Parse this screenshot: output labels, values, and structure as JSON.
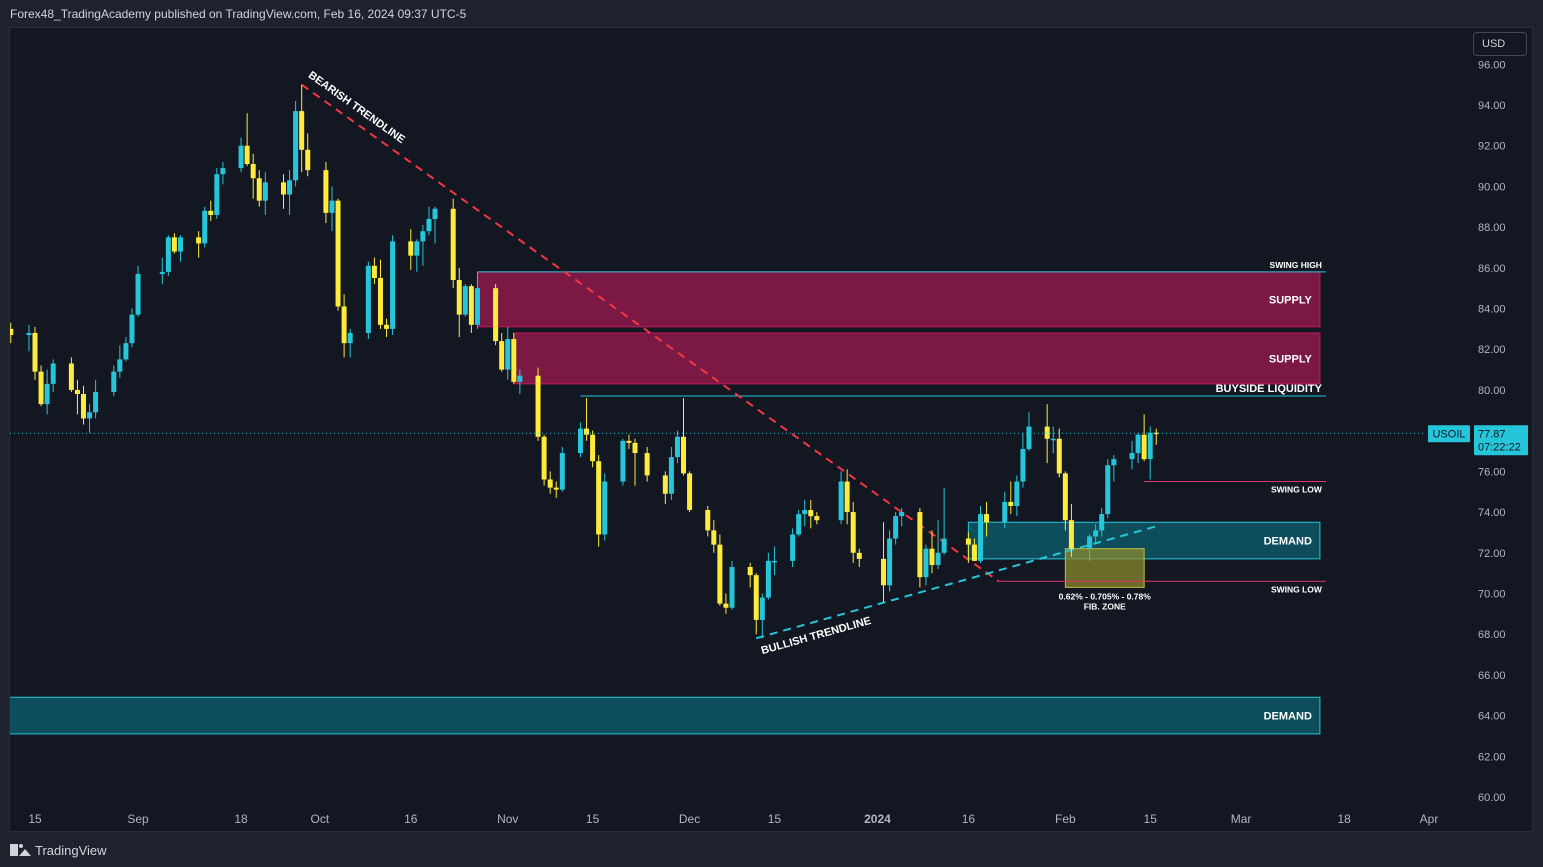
{
  "header": {
    "published": "Forex48_TradingAcademy published on TradingView.com, Feb 16, 2024 09:37 UTC-5"
  },
  "footer": {
    "brand": "TradingView"
  },
  "toolbar": {
    "currency": "USD"
  },
  "colors": {
    "background": "#131722",
    "bullish": "#26c6da",
    "bearish": "#ffeb3b",
    "supply": "#8e1a4a",
    "demand": "#0e5866",
    "fib_zone": "#8a8a2e",
    "bearish_trendline": "#f23645",
    "bullish_trendline": "#26c6da",
    "price_line": "#26c6da"
  },
  "chart_data": {
    "type": "candlestick",
    "symbol": "USOIL",
    "last_price": "77.87",
    "countdown": "07:22:22",
    "price_axis": {
      "min": 59,
      "max": 97,
      "ticks": [
        "96.00",
        "94.00",
        "92.00",
        "90.00",
        "88.00",
        "86.00",
        "84.00",
        "82.00",
        "80.00",
        "78.00",
        "76.00",
        "74.00",
        "72.00",
        "70.00",
        "68.00",
        "66.00",
        "64.00",
        "62.00",
        "60.00"
      ]
    },
    "time_axis": {
      "labels": [
        {
          "label": "15",
          "date": "2023-08-15"
        },
        {
          "label": "Sep",
          "date": "2023-09-01"
        },
        {
          "label": "18",
          "date": "2023-09-18"
        },
        {
          "label": "Oct",
          "date": "2023-10-01"
        },
        {
          "label": "16",
          "date": "2023-10-16"
        },
        {
          "label": "Nov",
          "date": "2023-11-01"
        },
        {
          "label": "15",
          "date": "2023-11-15"
        },
        {
          "label": "Dec",
          "date": "2023-12-01"
        },
        {
          "label": "15",
          "date": "2023-12-15"
        },
        {
          "label": "2024",
          "date": "2024-01-01"
        },
        {
          "label": "16",
          "date": "2024-01-16"
        },
        {
          "label": "Feb",
          "date": "2024-02-01"
        },
        {
          "label": "15",
          "date": "2024-02-15"
        },
        {
          "label": "Mar",
          "date": "2024-03-01"
        },
        {
          "label": "18",
          "date": "2024-03-18"
        },
        {
          "label": "Apr",
          "date": "2024-04-01"
        }
      ]
    },
    "candles": [
      [
        "2023-08-10",
        83.5,
        84.3,
        82.6,
        83.0
      ],
      [
        "2023-08-11",
        83.0,
        83.3,
        82.3,
        82.7
      ],
      [
        "2023-08-14",
        82.7,
        83.2,
        81.9,
        82.8
      ],
      [
        "2023-08-15",
        82.8,
        83.1,
        80.5,
        80.9
      ],
      [
        "2023-08-16",
        80.9,
        81.2,
        79.2,
        79.3
      ],
      [
        "2023-08-17",
        79.3,
        81.0,
        78.8,
        80.3
      ],
      [
        "2023-08-18",
        80.3,
        81.5,
        79.9,
        81.3
      ],
      [
        "2023-08-21",
        81.3,
        81.6,
        79.9,
        80.0
      ],
      [
        "2023-08-22",
        80.0,
        80.5,
        78.8,
        79.8
      ],
      [
        "2023-08-23",
        79.8,
        80.2,
        78.3,
        78.6
      ],
      [
        "2023-08-24",
        78.6,
        79.3,
        77.9,
        78.9
      ],
      [
        "2023-08-25",
        78.9,
        80.5,
        78.6,
        79.9
      ],
      [
        "2023-08-28",
        79.9,
        81.2,
        79.7,
        80.9
      ],
      [
        "2023-08-29",
        80.9,
        82.2,
        80.6,
        81.5
      ],
      [
        "2023-08-30",
        81.5,
        82.6,
        81.4,
        82.3
      ],
      [
        "2023-08-31",
        82.3,
        84.0,
        82.1,
        83.7
      ],
      [
        "2023-09-01",
        83.7,
        86.1,
        83.6,
        85.7
      ],
      [
        "2023-09-05",
        85.7,
        86.5,
        85.2,
        85.8
      ],
      [
        "2023-09-06",
        85.8,
        87.6,
        85.6,
        87.5
      ],
      [
        "2023-09-07",
        87.5,
        87.7,
        86.7,
        86.8
      ],
      [
        "2023-09-08",
        86.8,
        87.6,
        86.3,
        87.5
      ],
      [
        "2023-09-11",
        87.5,
        87.8,
        86.5,
        87.2
      ],
      [
        "2023-09-12",
        87.2,
        89.0,
        87.0,
        88.8
      ],
      [
        "2023-09-13",
        88.8,
        89.3,
        88.3,
        88.6
      ],
      [
        "2023-09-14",
        88.6,
        90.9,
        88.4,
        90.6
      ],
      [
        "2023-09-15",
        90.6,
        91.2,
        90.1,
        90.9
      ],
      [
        "2023-09-18",
        90.9,
        92.4,
        90.7,
        92.0
      ],
      [
        "2023-09-19",
        92.0,
        93.6,
        91.0,
        91.1
      ],
      [
        "2023-09-20",
        91.1,
        91.6,
        89.4,
        90.4
      ],
      [
        "2023-09-21",
        90.4,
        90.8,
        89.0,
        89.3
      ],
      [
        "2023-09-22",
        89.3,
        90.7,
        88.6,
        90.2
      ],
      [
        "2023-09-25",
        90.2,
        90.6,
        88.9,
        89.6
      ],
      [
        "2023-09-26",
        89.6,
        90.8,
        88.6,
        90.3
      ],
      [
        "2023-09-27",
        90.3,
        94.2,
        90.0,
        93.7
      ],
      [
        "2023-09-28",
        93.7,
        95.0,
        90.7,
        91.8
      ],
      [
        "2023-09-29",
        91.8,
        92.6,
        90.5,
        90.8
      ],
      [
        "2023-10-02",
        90.8,
        91.2,
        88.2,
        88.7
      ],
      [
        "2023-10-03",
        88.7,
        90.0,
        87.8,
        89.3
      ],
      [
        "2023-10-04",
        89.3,
        89.4,
        83.9,
        84.1
      ],
      [
        "2023-10-05",
        84.1,
        84.7,
        81.6,
        82.3
      ],
      [
        "2023-10-06",
        82.3,
        83.0,
        81.6,
        82.8
      ],
      [
        "2023-10-09",
        82.8,
        86.3,
        82.5,
        86.1
      ],
      [
        "2023-10-10",
        86.1,
        86.5,
        85.2,
        85.5
      ],
      [
        "2023-10-11",
        85.5,
        86.4,
        83.0,
        83.2
      ],
      [
        "2023-10-12",
        83.2,
        83.5,
        82.6,
        83.0
      ],
      [
        "2023-10-13",
        83.0,
        87.6,
        82.7,
        87.3
      ],
      [
        "2023-10-16",
        87.3,
        87.9,
        85.9,
        86.6
      ],
      [
        "2023-10-17",
        86.6,
        87.4,
        85.8,
        87.3
      ],
      [
        "2023-10-18",
        87.3,
        88.1,
        86.1,
        87.8
      ],
      [
        "2023-10-19",
        87.8,
        89.0,
        87.6,
        88.4
      ],
      [
        "2023-10-20",
        88.4,
        89.0,
        87.2,
        88.9
      ],
      [
        "2023-10-23",
        88.9,
        89.4,
        85.0,
        85.4
      ],
      [
        "2023-10-24",
        85.4,
        86.0,
        82.6,
        83.7
      ],
      [
        "2023-10-25",
        83.7,
        85.2,
        83.6,
        85.1
      ],
      [
        "2023-10-26",
        85.1,
        85.2,
        82.8,
        83.2
      ],
      [
        "2023-10-27",
        83.2,
        85.8,
        83.0,
        85.0
      ],
      [
        "2023-10-30",
        85.0,
        85.2,
        82.2,
        82.4
      ],
      [
        "2023-10-31",
        82.4,
        82.8,
        80.9,
        81.0
      ],
      [
        "2023-11-01",
        81.0,
        83.1,
        80.5,
        82.5
      ],
      [
        "2023-11-02",
        82.5,
        82.8,
        80.3,
        80.4
      ],
      [
        "2023-11-03",
        80.4,
        81.0,
        79.8,
        80.7
      ],
      [
        "2023-11-06",
        80.7,
        81.1,
        77.5,
        77.7
      ],
      [
        "2023-11-07",
        77.7,
        77.8,
        75.3,
        75.6
      ],
      [
        "2023-11-08",
        75.6,
        76.0,
        74.9,
        75.2
      ],
      [
        "2023-11-09",
        75.2,
        75.5,
        74.7,
        75.1
      ],
      [
        "2023-11-10",
        75.1,
        77.2,
        75.0,
        76.9
      ],
      [
        "2023-11-13",
        76.9,
        78.4,
        76.7,
        78.1
      ],
      [
        "2023-11-14",
        78.1,
        79.6,
        77.5,
        77.8
      ],
      [
        "2023-11-15",
        77.8,
        78.0,
        76.2,
        76.5
      ],
      [
        "2023-11-16",
        76.5,
        76.8,
        72.3,
        72.9
      ],
      [
        "2023-11-17",
        72.9,
        75.9,
        72.6,
        75.5
      ],
      [
        "2023-11-20",
        75.5,
        77.6,
        75.3,
        77.5
      ],
      [
        "2023-11-21",
        77.5,
        77.8,
        77.1,
        77.4
      ],
      [
        "2023-11-22",
        77.4,
        77.6,
        75.3,
        76.9
      ],
      [
        "2023-11-24",
        76.9,
        77.2,
        75.5,
        75.8
      ],
      [
        "2023-11-27",
        75.8,
        76.0,
        74.4,
        74.9
      ],
      [
        "2023-11-28",
        74.9,
        77.2,
        74.6,
        76.7
      ],
      [
        "2023-11-29",
        76.7,
        78.0,
        76.4,
        77.7
      ],
      [
        "2023-11-30",
        77.7,
        79.6,
        75.8,
        75.9
      ],
      [
        "2023-12-01",
        75.9,
        76.0,
        74.0,
        74.1
      ],
      [
        "2023-12-04",
        74.1,
        74.3,
        72.8,
        73.1
      ],
      [
        "2023-12-05",
        73.1,
        73.6,
        72.0,
        72.4
      ],
      [
        "2023-12-06",
        72.4,
        72.9,
        69.4,
        69.5
      ],
      [
        "2023-12-07",
        69.5,
        70.0,
        69.0,
        69.3
      ],
      [
        "2023-12-08",
        69.3,
        71.6,
        69.2,
        71.3
      ],
      [
        "2023-12-11",
        71.3,
        71.5,
        70.3,
        70.9
      ],
      [
        "2023-12-12",
        70.9,
        71.0,
        68.0,
        68.7
      ],
      [
        "2023-12-13",
        68.7,
        70.0,
        67.8,
        69.8
      ],
      [
        "2023-12-14",
        69.8,
        72.0,
        69.7,
        71.6
      ],
      [
        "2023-12-15",
        71.6,
        72.3,
        70.9,
        71.6
      ],
      [
        "2023-12-18",
        71.6,
        73.2,
        71.3,
        72.9
      ],
      [
        "2023-12-19",
        72.9,
        74.1,
        72.8,
        73.9
      ],
      [
        "2023-12-20",
        73.9,
        74.6,
        73.3,
        74.1
      ],
      [
        "2023-12-21",
        74.1,
        74.6,
        73.2,
        73.8
      ],
      [
        "2023-12-22",
        73.8,
        74.0,
        73.4,
        73.6
      ],
      [
        "2023-12-26",
        73.6,
        76.0,
        73.4,
        75.5
      ],
      [
        "2023-12-27",
        75.5,
        76.1,
        73.4,
        74.0
      ],
      [
        "2023-12-28",
        74.0,
        74.5,
        71.5,
        72.0
      ],
      [
        "2023-12-29",
        72.0,
        72.2,
        71.3,
        71.7
      ],
      [
        "2024-01-02",
        71.7,
        73.5,
        69.6,
        70.4
      ],
      [
        "2024-01-03",
        70.4,
        73.1,
        70.1,
        72.7
      ],
      [
        "2024-01-04",
        72.7,
        74.0,
        72.4,
        73.8
      ],
      [
        "2024-01-05",
        73.8,
        74.2,
        73.3,
        74.0
      ],
      [
        "2024-01-08",
        74.0,
        74.2,
        70.3,
        70.8
      ],
      [
        "2024-01-09",
        70.8,
        72.4,
        70.4,
        72.2
      ],
      [
        "2024-01-10",
        72.2,
        73.1,
        71.0,
        71.4
      ],
      [
        "2024-01-11",
        71.4,
        73.6,
        71.2,
        72.0
      ],
      [
        "2024-01-12",
        72.0,
        75.2,
        71.9,
        72.7
      ],
      [
        "2024-01-16",
        72.7,
        73.0,
        71.5,
        72.4
      ],
      [
        "2024-01-17",
        72.4,
        72.7,
        71.6,
        71.6
      ],
      [
        "2024-01-18",
        71.6,
        74.3,
        71.5,
        73.9
      ],
      [
        "2024-01-19",
        73.9,
        74.5,
        72.8,
        73.5
      ],
      [
        "2024-01-22",
        73.5,
        75.0,
        73.2,
        74.5
      ],
      [
        "2024-01-23",
        74.5,
        75.5,
        73.9,
        74.3
      ],
      [
        "2024-01-24",
        74.3,
        75.8,
        73.8,
        75.5
      ],
      [
        "2024-01-25",
        75.5,
        77.9,
        75.2,
        77.1
      ],
      [
        "2024-01-26",
        77.1,
        78.9,
        77.0,
        78.2
      ],
      [
        "2024-01-29",
        78.2,
        79.3,
        76.4,
        77.6
      ],
      [
        "2024-01-30",
        77.6,
        78.2,
        76.9,
        77.6
      ],
      [
        "2024-01-31",
        77.6,
        78.1,
        75.7,
        75.9
      ],
      [
        "2024-02-01",
        75.9,
        76.0,
        73.1,
        73.6
      ],
      [
        "2024-02-02",
        73.6,
        74.4,
        71.8,
        72.2
      ],
      [
        "2024-02-05",
        72.2,
        72.9,
        71.6,
        72.8
      ],
      [
        "2024-02-06",
        72.8,
        73.4,
        72.4,
        73.1
      ],
      [
        "2024-02-07",
        73.1,
        74.2,
        72.8,
        73.9
      ],
      [
        "2024-02-08",
        73.9,
        76.6,
        73.7,
        76.3
      ],
      [
        "2024-02-09",
        76.3,
        76.8,
        75.5,
        76.6
      ],
      [
        "2024-02-12",
        76.6,
        77.5,
        76.1,
        76.9
      ],
      [
        "2024-02-13",
        76.9,
        77.9,
        76.4,
        77.8
      ],
      [
        "2024-02-14",
        77.8,
        78.8,
        76.5,
        76.6
      ],
      [
        "2024-02-15",
        76.6,
        78.2,
        75.6,
        77.9
      ],
      [
        "2024-02-16",
        77.9,
        78.1,
        77.3,
        77.87
      ]
    ],
    "zones": [
      {
        "label": "SUPPLY",
        "kind": "supply",
        "from": "2023-10-27",
        "to": "2024-03-14",
        "top": 85.8,
        "bottom": 83.1
      },
      {
        "label": "SUPPLY",
        "kind": "supply",
        "from": "2023-11-02",
        "to": "2024-03-14",
        "top": 82.8,
        "bottom": 80.3
      },
      {
        "label": "DEMAND",
        "kind": "demand",
        "from": "2024-01-16",
        "to": "2024-03-14",
        "top": 73.5,
        "bottom": 71.7
      },
      {
        "label": "DEMAND",
        "kind": "demand",
        "from": "2023-08-01",
        "to": "2024-03-14",
        "top": 64.9,
        "bottom": 63.1
      }
    ],
    "fib_zone": {
      "label": "0.62% - 0.705% - 0.78%",
      "sublabel": "FIB. ZONE",
      "from": "2024-02-01",
      "to": "2024-02-14",
      "top": 72.2,
      "bottom": 70.3
    },
    "levels": [
      {
        "label": "SWING HIGH",
        "from": "2023-10-27",
        "to": "2024-03-15",
        "price": 85.8
      },
      {
        "label": "BUYSIDE LIQUIDITY",
        "from": "2023-11-13",
        "to": "2024-03-15",
        "price": 79.7
      },
      {
        "label": "SWING LOW",
        "from": "2024-02-14",
        "to": "2024-03-15",
        "price": 75.5
      },
      {
        "label": "SWING LOW",
        "from": "2024-01-21",
        "to": "2024-03-15",
        "price": 70.6
      }
    ],
    "trendlines": [
      {
        "label": "BEARISH TRENDLINE",
        "kind": "bearish",
        "start": [
          "2023-09-28",
          95.0
        ],
        "end": [
          "2024-01-21",
          70.6
        ]
      },
      {
        "label": "BULLISH TRENDLINE",
        "kind": "bullish",
        "start": [
          "2023-12-12",
          67.8
        ],
        "end": [
          "2024-02-16",
          73.3
        ]
      }
    ]
  }
}
